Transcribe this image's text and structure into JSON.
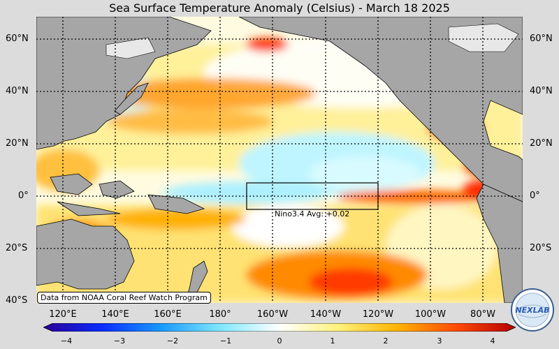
{
  "title": "Sea Surface Temperature Anomaly (Celsius) - March 18 2025",
  "lat_labels": [
    "60°N",
    "40°N",
    "20°N",
    "0°",
    "20°S",
    "40°S"
  ],
  "lon_labels": [
    "120°E",
    "140°E",
    "160°E",
    "180°",
    "160°W",
    "140°W",
    "120°W",
    "100°W",
    "80°W"
  ],
  "credit": "Data from NOAA Coral Reef Watch Program",
  "nino_box": {
    "label": "Nino3.4 Avg: +0.02",
    "lon_range": [
      "170°W",
      "120°W"
    ],
    "lat_range": [
      "5°S",
      "5°N"
    ]
  },
  "colorbar": {
    "ticks": [
      "−4",
      "−3",
      "−2",
      "−1",
      "0",
      "1",
      "2",
      "3",
      "4"
    ],
    "colors": [
      "#2b0096",
      "#0a2cff",
      "#1a9bff",
      "#7fe8ff",
      "#ffffff",
      "#fff27a",
      "#ffb300",
      "#ff4a00",
      "#b30000"
    ]
  },
  "colors": {
    "land": "#a6a6a6",
    "ice": "#e8e8e8",
    "background": "#dcdcdc"
  },
  "logo": {
    "text": "NEXLAB"
  }
}
